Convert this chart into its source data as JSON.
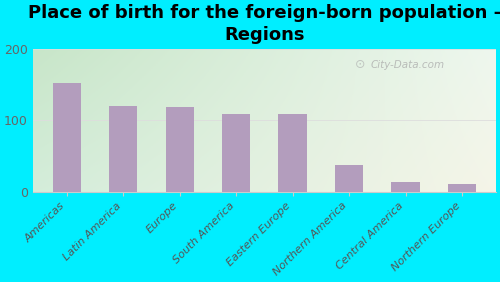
{
  "title": "Place of birth for the foreign-born population -\nRegions",
  "categories": [
    "Americas",
    "Latin America",
    "Europe",
    "South America",
    "Eastern Europe",
    "Northern America",
    "Central America",
    "Northern Europe"
  ],
  "values": [
    152,
    120,
    118,
    108,
    108,
    37,
    13,
    11
  ],
  "bar_color": "#b39dbd",
  "background_color": "#00eeff",
  "plot_bg_color_topleft": "#d4edda",
  "plot_bg_color_right": "#f0f7ee",
  "plot_bg_color_bottom": "#eef7f0",
  "ylim": [
    0,
    200
  ],
  "yticks": [
    0,
    100,
    200
  ],
  "watermark": "City-Data.com",
  "title_fontsize": 13,
  "tick_fontsize": 8,
  "ytick_fontsize": 9
}
